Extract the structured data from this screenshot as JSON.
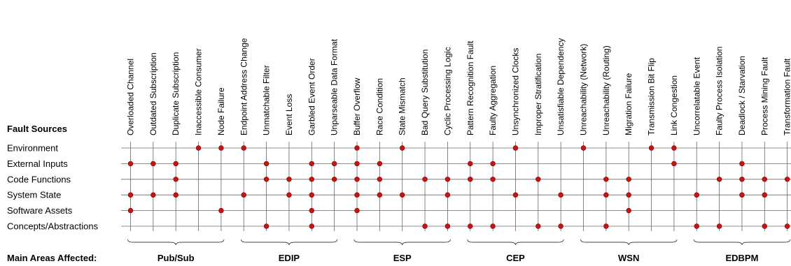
{
  "labels": {
    "sources_heading": "Fault Sources",
    "areas_heading": "Main Areas Affected:"
  },
  "rows": [
    "Environment",
    "External Inputs",
    "Code Functions",
    "System State",
    "Software Assets",
    "Concepts/Abstractions"
  ],
  "columns": [
    "Overloaded Channel",
    "Outdated Subscription",
    "Duplicate Subscription",
    "Inaccessible Consumer",
    "Node Failure",
    "Endpoint Address Change",
    "Unmatchable Filter",
    "Event Loss",
    "Garbled Event Order",
    "Unparseable Data Format",
    "Buffer Overflow",
    "Race Condition",
    "State Mismatch",
    "Bad Query Substitution",
    "Cyclic Processing Logic",
    "Pattern Recognition Fault",
    "Faulty Aggregation",
    "Unsynchronized Clocks",
    "Improper Stratification",
    "Unsatisfiable Dependency",
    "Unreachability (Network)",
    "Unreachability (Routing)",
    "Migration Failure",
    "Transmission Bit Flip",
    "Link Congestion",
    "Uncorrelatable Event",
    "Faulty Process Isolation",
    "Deadlock / Starvation",
    "Process Mining Fault",
    "Transformation Fault"
  ],
  "groups": [
    "Pub/Sub",
    "EDIP",
    "ESP",
    "CEP",
    "WSN",
    "EDBPM"
  ],
  "marker_color": "#cc1111",
  "marks": [
    [
      3,
      4,
      5,
      10,
      12,
      17,
      20,
      23,
      24
    ],
    [
      0,
      1,
      2,
      6,
      8,
      9,
      10,
      11,
      15,
      16,
      24,
      27
    ],
    [
      2,
      6,
      7,
      8,
      9,
      10,
      11,
      13,
      14,
      15,
      16,
      18,
      21,
      22,
      26,
      27,
      28,
      29
    ],
    [
      0,
      1,
      2,
      5,
      7,
      8,
      10,
      11,
      12,
      14,
      17,
      19,
      21,
      22,
      25,
      27,
      28
    ],
    [
      0,
      4,
      8,
      10,
      22
    ],
    [
      6,
      8,
      13,
      14,
      15,
      16,
      18,
      19,
      21,
      25,
      26,
      28,
      29
    ]
  ]
}
